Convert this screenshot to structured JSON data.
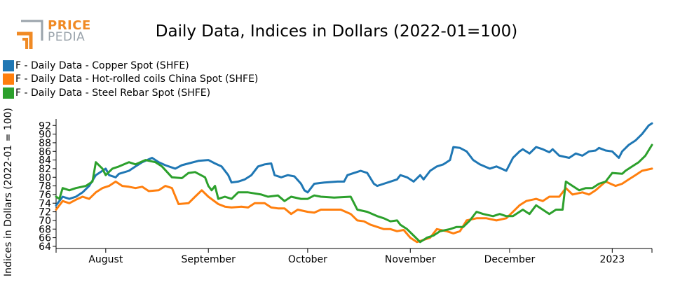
{
  "header": {
    "logo_line1": "PRICE",
    "logo_line2": "PEDIA",
    "title": "Daily Data, Indices in Dollars (2022-01=100)"
  },
  "colors": {
    "copper": "#1f77b4",
    "hot_rolled": "#ff7f0e",
    "rebar": "#2ca02c",
    "logo_orange": "#f08a24",
    "logo_grey": "#9aa3ab"
  },
  "chart_data": {
    "type": "line",
    "title": "Daily Data, Indices in Dollars (2022-01=100)",
    "xlabel": "",
    "ylabel": "Indices in Dollars (2022-01 = 100)",
    "x_tick_labels": [
      "August",
      "September",
      "October",
      "November",
      "December",
      "2023"
    ],
    "x_ticks": [
      "2022-08-01",
      "2022-09-01",
      "2022-10-01",
      "2022-11-01",
      "2022-12-01",
      "2023-01-01"
    ],
    "y_ticks": [
      64,
      66,
      68,
      70,
      72,
      74,
      76,
      78,
      80,
      82,
      84,
      86,
      88,
      90,
      92
    ],
    "xlim": [
      "2022-07-17",
      "2023-01-13"
    ],
    "ylim": [
      63.5,
      93.5
    ],
    "legend_position": "top-left",
    "series": [
      {
        "name": "F - Daily Data - Copper Spot (SHFE)",
        "color": "#1f77b4",
        "points": [
          [
            "2022-07-17",
            73.5
          ],
          [
            "2022-07-19",
            75.5
          ],
          [
            "2022-07-21",
            75.0
          ],
          [
            "2022-07-23",
            75.5
          ],
          [
            "2022-07-25",
            76.5
          ],
          [
            "2022-07-27",
            78.0
          ],
          [
            "2022-07-29",
            80.5
          ],
          [
            "2022-07-31",
            81.5
          ],
          [
            "2022-08-01",
            82.0
          ],
          [
            "2022-08-02",
            80.5
          ],
          [
            "2022-08-04",
            80.0
          ],
          [
            "2022-08-05",
            80.8
          ],
          [
            "2022-08-08",
            81.5
          ],
          [
            "2022-08-10",
            82.5
          ],
          [
            "2022-08-12",
            83.5
          ],
          [
            "2022-08-15",
            84.5
          ],
          [
            "2022-08-17",
            83.5
          ],
          [
            "2022-08-19",
            82.8
          ],
          [
            "2022-08-22",
            82.0
          ],
          [
            "2022-08-24",
            82.8
          ],
          [
            "2022-08-26",
            83.2
          ],
          [
            "2022-08-29",
            83.8
          ],
          [
            "2022-09-01",
            84.0
          ],
          [
            "2022-09-03",
            83.2
          ],
          [
            "2022-09-05",
            82.5
          ],
          [
            "2022-09-07",
            80.5
          ],
          [
            "2022-09-08",
            78.8
          ],
          [
            "2022-09-10",
            79.0
          ],
          [
            "2022-09-12",
            79.5
          ],
          [
            "2022-09-14",
            80.5
          ],
          [
            "2022-09-16",
            82.5
          ],
          [
            "2022-09-18",
            83.0
          ],
          [
            "2022-09-20",
            83.2
          ],
          [
            "2022-09-21",
            80.5
          ],
          [
            "2022-09-23",
            80.0
          ],
          [
            "2022-09-25",
            80.5
          ],
          [
            "2022-09-27",
            80.2
          ],
          [
            "2022-09-29",
            78.5
          ],
          [
            "2022-09-30",
            77.0
          ],
          [
            "2022-10-01",
            76.5
          ],
          [
            "2022-10-02",
            77.5
          ],
          [
            "2022-10-03",
            78.5
          ],
          [
            "2022-10-06",
            78.8
          ],
          [
            "2022-10-10",
            79.0
          ],
          [
            "2022-10-12",
            79.0
          ],
          [
            "2022-10-13",
            80.5
          ],
          [
            "2022-10-15",
            81.0
          ],
          [
            "2022-10-17",
            81.5
          ],
          [
            "2022-10-19",
            81.0
          ],
          [
            "2022-10-21",
            78.5
          ],
          [
            "2022-10-22",
            78.0
          ],
          [
            "2022-10-24",
            78.5
          ],
          [
            "2022-10-26",
            79.0
          ],
          [
            "2022-10-28",
            79.5
          ],
          [
            "2022-10-29",
            80.5
          ],
          [
            "2022-10-31",
            80.0
          ],
          [
            "2022-11-02",
            79.0
          ],
          [
            "2022-11-04",
            80.5
          ],
          [
            "2022-11-05",
            79.5
          ],
          [
            "2022-11-07",
            81.5
          ],
          [
            "2022-11-09",
            82.5
          ],
          [
            "2022-11-11",
            83.0
          ],
          [
            "2022-11-13",
            84.0
          ],
          [
            "2022-11-14",
            87.0
          ],
          [
            "2022-11-16",
            86.8
          ],
          [
            "2022-11-18",
            86.0
          ],
          [
            "2022-11-20",
            84.0
          ],
          [
            "2022-11-22",
            83.0
          ],
          [
            "2022-11-25",
            82.0
          ],
          [
            "2022-11-27",
            82.5
          ],
          [
            "2022-11-30",
            81.5
          ],
          [
            "2022-12-02",
            84.5
          ],
          [
            "2022-12-04",
            86.0
          ],
          [
            "2022-12-05",
            86.5
          ],
          [
            "2022-12-07",
            85.5
          ],
          [
            "2022-12-09",
            87.0
          ],
          [
            "2022-12-11",
            86.5
          ],
          [
            "2022-12-13",
            85.8
          ],
          [
            "2022-12-14",
            86.5
          ],
          [
            "2022-12-16",
            85.0
          ],
          [
            "2022-12-19",
            84.5
          ],
          [
            "2022-12-21",
            85.5
          ],
          [
            "2022-12-23",
            85.0
          ],
          [
            "2022-12-25",
            86.0
          ],
          [
            "2022-12-27",
            86.2
          ],
          [
            "2022-12-28",
            86.8
          ],
          [
            "2022-12-30",
            86.2
          ],
          [
            "2023-01-01",
            86.0
          ],
          [
            "2023-01-03",
            84.5
          ],
          [
            "2023-01-04",
            86.0
          ],
          [
            "2023-01-06",
            87.5
          ],
          [
            "2023-01-08",
            88.5
          ],
          [
            "2023-01-10",
            90.0
          ],
          [
            "2023-01-12",
            92.0
          ],
          [
            "2023-01-13",
            92.5
          ]
        ]
      },
      {
        "name": "F - Daily Data - Hot-rolled coils China Spot (SHFE)",
        "color": "#ff7f0e",
        "points": [
          [
            "2022-07-17",
            72.5
          ],
          [
            "2022-07-19",
            74.5
          ],
          [
            "2022-07-21",
            74.0
          ],
          [
            "2022-07-23",
            74.8
          ],
          [
            "2022-07-25",
            75.5
          ],
          [
            "2022-07-27",
            75.0
          ],
          [
            "2022-07-29",
            76.5
          ],
          [
            "2022-07-31",
            77.5
          ],
          [
            "2022-08-02",
            78.0
          ],
          [
            "2022-08-04",
            79.0
          ],
          [
            "2022-08-06",
            78.0
          ],
          [
            "2022-08-08",
            77.8
          ],
          [
            "2022-08-10",
            77.5
          ],
          [
            "2022-08-12",
            77.8
          ],
          [
            "2022-08-14",
            76.8
          ],
          [
            "2022-08-17",
            77.0
          ],
          [
            "2022-08-19",
            78.0
          ],
          [
            "2022-08-21",
            77.5
          ],
          [
            "2022-08-23",
            73.8
          ],
          [
            "2022-08-26",
            74.0
          ],
          [
            "2022-08-28",
            75.5
          ],
          [
            "2022-08-30",
            77.0
          ],
          [
            "2022-09-01",
            75.5
          ],
          [
            "2022-09-04",
            73.8
          ],
          [
            "2022-09-06",
            73.2
          ],
          [
            "2022-09-08",
            73.0
          ],
          [
            "2022-09-11",
            73.2
          ],
          [
            "2022-09-13",
            73.0
          ],
          [
            "2022-09-15",
            74.0
          ],
          [
            "2022-09-18",
            74.0
          ],
          [
            "2022-09-20",
            73.0
          ],
          [
            "2022-09-22",
            72.8
          ],
          [
            "2022-09-24",
            72.8
          ],
          [
            "2022-09-26",
            71.5
          ],
          [
            "2022-09-28",
            72.5
          ],
          [
            "2022-10-01",
            72.0
          ],
          [
            "2022-10-03",
            71.8
          ],
          [
            "2022-10-05",
            72.5
          ],
          [
            "2022-10-08",
            72.5
          ],
          [
            "2022-10-11",
            72.5
          ],
          [
            "2022-10-14",
            71.5
          ],
          [
            "2022-10-16",
            70.0
          ],
          [
            "2022-10-18",
            69.8
          ],
          [
            "2022-10-20",
            69.0
          ],
          [
            "2022-10-22",
            68.5
          ],
          [
            "2022-10-24",
            68.0
          ],
          [
            "2022-10-26",
            68.0
          ],
          [
            "2022-10-28",
            67.5
          ],
          [
            "2022-10-30",
            67.8
          ],
          [
            "2022-11-01",
            66.0
          ],
          [
            "2022-11-03",
            65.0
          ],
          [
            "2022-11-05",
            65.5
          ],
          [
            "2022-11-07",
            66.0
          ],
          [
            "2022-11-09",
            68.0
          ],
          [
            "2022-11-12",
            67.5
          ],
          [
            "2022-11-14",
            67.0
          ],
          [
            "2022-11-16",
            67.5
          ],
          [
            "2022-11-18",
            70.0
          ],
          [
            "2022-11-21",
            70.5
          ],
          [
            "2022-11-24",
            70.5
          ],
          [
            "2022-11-27",
            70.0
          ],
          [
            "2022-11-30",
            70.5
          ],
          [
            "2022-12-02",
            72.0
          ],
          [
            "2022-12-04",
            73.5
          ],
          [
            "2022-12-06",
            74.5
          ],
          [
            "2022-12-09",
            75.0
          ],
          [
            "2022-12-11",
            74.5
          ],
          [
            "2022-12-13",
            75.5
          ],
          [
            "2022-12-16",
            75.5
          ],
          [
            "2022-12-18",
            77.5
          ],
          [
            "2022-12-20",
            76.0
          ],
          [
            "2022-12-23",
            76.5
          ],
          [
            "2022-12-25",
            76.0
          ],
          [
            "2022-12-27",
            77.0
          ],
          [
            "2022-12-30",
            79.0
          ],
          [
            "2023-01-02",
            78.0
          ],
          [
            "2023-01-04",
            78.5
          ],
          [
            "2023-01-06",
            79.5
          ],
          [
            "2023-01-08",
            80.5
          ],
          [
            "2023-01-10",
            81.5
          ],
          [
            "2023-01-13",
            82.0
          ]
        ]
      },
      {
        "name": "F - Daily Data - Steel Rebar Spot (SHFE)",
        "color": "#2ca02c",
        "points": [
          [
            "2022-07-17",
            75.5
          ],
          [
            "2022-07-18",
            75.0
          ],
          [
            "2022-07-19",
            77.5
          ],
          [
            "2022-07-21",
            77.0
          ],
          [
            "2022-07-23",
            77.5
          ],
          [
            "2022-07-26",
            78.0
          ],
          [
            "2022-07-28",
            79.0
          ],
          [
            "2022-07-29",
            83.5
          ],
          [
            "2022-07-31",
            82.0
          ],
          [
            "2022-08-01",
            80.5
          ],
          [
            "2022-08-03",
            82.0
          ],
          [
            "2022-08-05",
            82.5
          ],
          [
            "2022-08-08",
            83.5
          ],
          [
            "2022-08-10",
            83.0
          ],
          [
            "2022-08-13",
            84.0
          ],
          [
            "2022-08-16",
            83.5
          ],
          [
            "2022-08-18",
            82.5
          ],
          [
            "2022-08-21",
            80.0
          ],
          [
            "2022-08-24",
            79.8
          ],
          [
            "2022-08-26",
            81.0
          ],
          [
            "2022-08-28",
            81.2
          ],
          [
            "2022-08-31",
            80.0
          ],
          [
            "2022-09-01",
            78.0
          ],
          [
            "2022-09-02",
            77.0
          ],
          [
            "2022-09-03",
            78.0
          ],
          [
            "2022-09-04",
            75.0
          ],
          [
            "2022-09-06",
            75.5
          ],
          [
            "2022-09-08",
            75.0
          ],
          [
            "2022-09-10",
            76.5
          ],
          [
            "2022-09-13",
            76.5
          ],
          [
            "2022-09-17",
            76.0
          ],
          [
            "2022-09-19",
            75.5
          ],
          [
            "2022-09-22",
            75.8
          ],
          [
            "2022-09-24",
            74.5
          ],
          [
            "2022-09-26",
            75.5
          ],
          [
            "2022-09-29",
            75.0
          ],
          [
            "2022-10-01",
            75.0
          ],
          [
            "2022-10-03",
            75.8
          ],
          [
            "2022-10-05",
            75.5
          ],
          [
            "2022-10-09",
            75.3
          ],
          [
            "2022-10-14",
            75.5
          ],
          [
            "2022-10-16",
            72.5
          ],
          [
            "2022-10-19",
            72.0
          ],
          [
            "2022-10-22",
            71.0
          ],
          [
            "2022-10-24",
            70.5
          ],
          [
            "2022-10-26",
            69.8
          ],
          [
            "2022-10-28",
            70.0
          ],
          [
            "2022-10-29",
            69.0
          ],
          [
            "2022-10-31",
            68.0
          ],
          [
            "2022-11-02",
            66.5
          ],
          [
            "2022-11-04",
            65.0
          ],
          [
            "2022-11-06",
            66.0
          ],
          [
            "2022-11-08",
            66.5
          ],
          [
            "2022-11-10",
            67.5
          ],
          [
            "2022-11-13",
            68.0
          ],
          [
            "2022-11-15",
            68.5
          ],
          [
            "2022-11-17",
            68.5
          ],
          [
            "2022-11-19",
            70.0
          ],
          [
            "2022-11-21",
            72.0
          ],
          [
            "2022-11-23",
            71.5
          ],
          [
            "2022-11-26",
            71.0
          ],
          [
            "2022-11-28",
            71.5
          ],
          [
            "2022-11-30",
            71.0
          ],
          [
            "2022-12-02",
            71.0
          ],
          [
            "2022-12-05",
            72.5
          ],
          [
            "2022-12-07",
            71.5
          ],
          [
            "2022-12-09",
            73.5
          ],
          [
            "2022-12-11",
            72.5
          ],
          [
            "2022-12-13",
            71.5
          ],
          [
            "2022-12-15",
            72.5
          ],
          [
            "2022-12-17",
            72.5
          ],
          [
            "2022-12-18",
            79.0
          ],
          [
            "2022-12-20",
            78.0
          ],
          [
            "2022-12-22",
            77.0
          ],
          [
            "2022-12-24",
            77.5
          ],
          [
            "2022-12-26",
            77.5
          ],
          [
            "2022-12-28",
            78.5
          ],
          [
            "2022-12-30",
            79.0
          ],
          [
            "2023-01-01",
            81.0
          ],
          [
            "2023-01-04",
            80.8
          ],
          [
            "2023-01-05",
            81.5
          ],
          [
            "2023-01-07",
            82.5
          ],
          [
            "2023-01-09",
            83.5
          ],
          [
            "2023-01-11",
            85.0
          ],
          [
            "2023-01-13",
            87.5
          ]
        ]
      }
    ]
  }
}
